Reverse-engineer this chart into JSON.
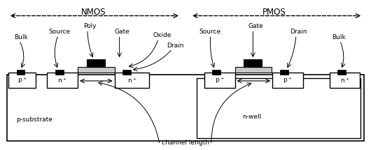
{
  "bg_color": "#ffffff",
  "lc": "#000000",
  "gate_oxide_color": "#c8c8c8",
  "title_nmos": "NMOS",
  "title_pmos": "PMOS",
  "substrate_label": "p-substrate",
  "nwell_label": "n-well",
  "channel_length_label": "channel length",
  "fs": 7.5,
  "sfs": 6.5
}
